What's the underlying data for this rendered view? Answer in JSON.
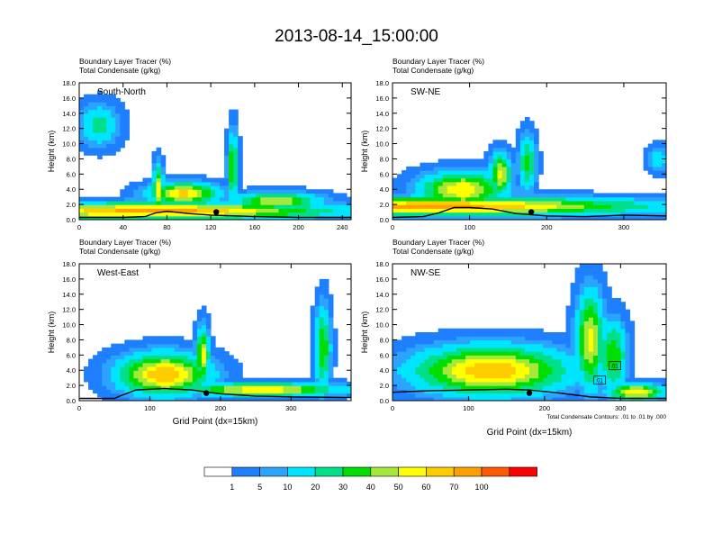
{
  "title": "2013-08-14_15:00:00",
  "chart_data": [
    {
      "type": "heatmap",
      "panel_label": "South-North",
      "subtitle_line1": "Boundary Layer Tracer   (%)",
      "subtitle_line2": "Total Condensate   (g/kg)",
      "ylabel": "Height (km)",
      "xlabel": "",
      "xlim": [
        0,
        248
      ],
      "ylim": [
        0,
        18
      ],
      "xticks": [
        0,
        40,
        80,
        120,
        160,
        200,
        240
      ],
      "yticks": [
        0,
        2,
        4,
        6,
        8,
        10,
        12,
        14,
        16,
        18
      ],
      "ytick_labels": [
        "0.0",
        "2.0",
        "4.0",
        "6.0",
        "8.0",
        "10.0",
        "12.0",
        "14.0",
        "16.0",
        "18.0"
      ],
      "terrain": [
        [
          0,
          0.3
        ],
        [
          40,
          0.3
        ],
        [
          60,
          0.4
        ],
        [
          70,
          0.9
        ],
        [
          80,
          1.1
        ],
        [
          100,
          0.8
        ],
        [
          120,
          0.6
        ],
        [
          160,
          0.4
        ],
        [
          200,
          0.3
        ],
        [
          248,
          0.3
        ]
      ],
      "marker": [
        125,
        1.0
      ],
      "blobs": [
        {
          "x": 70,
          "y": 1.2,
          "rx": 180,
          "ry": 1.2,
          "v": 75
        },
        {
          "x": 72,
          "y": 4,
          "rx": 5,
          "ry": 3.5,
          "v": 55
        },
        {
          "x": 95,
          "y": 3.5,
          "rx": 35,
          "ry": 1.5,
          "v": 65
        },
        {
          "x": 140,
          "y": 7,
          "rx": 5,
          "ry": 5,
          "v": 45
        },
        {
          "x": 18,
          "y": 12.5,
          "rx": 20,
          "ry": 3,
          "v": 25
        },
        {
          "x": 180,
          "y": 2.5,
          "rx": 45,
          "ry": 1.2,
          "v": 50
        }
      ]
    },
    {
      "type": "heatmap",
      "panel_label": "SW-NE",
      "subtitle_line1": "Boundary Layer Tracer   (%)",
      "subtitle_line2": "Total Condensate   (g/kg)",
      "ylabel": "Height (km)",
      "xlabel": "",
      "xlim": [
        0,
        355
      ],
      "ylim": [
        0,
        18
      ],
      "xticks": [
        0,
        100,
        200,
        300
      ],
      "yticks": [
        0,
        2,
        4,
        6,
        8,
        10,
        12,
        14,
        16,
        18
      ],
      "ytick_labels": [
        "0.0",
        "2.0",
        "4.0",
        "6.0",
        "8.0",
        "10.0",
        "12.0",
        "14.0",
        "16.0",
        "18.0"
      ],
      "terrain": [
        [
          0,
          0.3
        ],
        [
          40,
          0.4
        ],
        [
          60,
          0.9
        ],
        [
          80,
          1.6
        ],
        [
          100,
          1.6
        ],
        [
          130,
          1.4
        ],
        [
          160,
          0.8
        ],
        [
          200,
          0.5
        ],
        [
          250,
          0.4
        ],
        [
          300,
          0.6
        ],
        [
          355,
          0.5
        ]
      ],
      "marker": [
        180,
        1.0
      ],
      "blobs": [
        {
          "x": 60,
          "y": 1.8,
          "rx": 300,
          "ry": 1.3,
          "v": 75
        },
        {
          "x": 90,
          "y": 4,
          "rx": 60,
          "ry": 2.5,
          "v": 60
        },
        {
          "x": 140,
          "y": 6,
          "rx": 15,
          "ry": 3,
          "v": 55
        },
        {
          "x": 175,
          "y": 7.5,
          "rx": 12,
          "ry": 4,
          "v": 35
        },
        {
          "x": 345,
          "y": 8,
          "rx": 15,
          "ry": 2,
          "v": 15
        }
      ]
    },
    {
      "type": "heatmap",
      "panel_label": "West-East",
      "subtitle_line1": "Boundary Layer Tracer   (%)",
      "subtitle_line2": "Total Condensate   (g/kg)",
      "ylabel": "Height (km)",
      "xlabel": "Grid Point (dx=15km)",
      "xlim": [
        0,
        385
      ],
      "ylim": [
        0,
        18
      ],
      "xticks": [
        0,
        100,
        200,
        300
      ],
      "yticks": [
        0,
        2,
        4,
        6,
        8,
        10,
        12,
        14,
        16,
        18
      ],
      "ytick_labels": [
        "0.0",
        "2.0",
        "4.0",
        "6.0",
        "8.0",
        "10.0",
        "12.0",
        "14.0",
        "16.0",
        "18.0"
      ],
      "terrain": [
        [
          0,
          0.3
        ],
        [
          50,
          0.3
        ],
        [
          60,
          0.7
        ],
        [
          80,
          1.4
        ],
        [
          120,
          1.6
        ],
        [
          160,
          1.4
        ],
        [
          200,
          0.9
        ],
        [
          250,
          0.6
        ],
        [
          300,
          0.5
        ],
        [
          385,
          0.4
        ]
      ],
      "marker": [
        180,
        1.0
      ],
      "blobs": [
        {
          "x": 120,
          "y": 3.5,
          "rx": 70,
          "ry": 3,
          "v": 70
        },
        {
          "x": 175,
          "y": 6,
          "rx": 10,
          "ry": 4,
          "v": 55
        },
        {
          "x": 260,
          "y": 1.5,
          "rx": 120,
          "ry": 1,
          "v": 60
        },
        {
          "x": 345,
          "y": 7,
          "rx": 12,
          "ry": 6,
          "v": 40
        }
      ]
    },
    {
      "type": "heatmap",
      "panel_label": "NW-SE",
      "subtitle_line1": "Boundary Layer Tracer   (%)",
      "subtitle_line2": "Total Condensate   (g/kg)",
      "ylabel": "Height (km)",
      "xlabel": "Grid Point (dx=15km)",
      "xlim": [
        0,
        360
      ],
      "ylim": [
        0,
        18
      ],
      "xticks": [
        0,
        100,
        200,
        300
      ],
      "yticks": [
        0,
        2,
        4,
        6,
        8,
        10,
        12,
        14,
        16,
        18
      ],
      "ytick_labels": [
        "0.0",
        "2.0",
        "4.0",
        "6.0",
        "8.0",
        "10.0",
        "12.0",
        "14.0",
        "16.0",
        "18.0"
      ],
      "terrain": [
        [
          0,
          1.1
        ],
        [
          50,
          1.3
        ],
        [
          100,
          1.4
        ],
        [
          150,
          1.5
        ],
        [
          180,
          1.4
        ],
        [
          220,
          1.0
        ],
        [
          260,
          0.5
        ],
        [
          300,
          0.3
        ],
        [
          360,
          0.3
        ]
      ],
      "marker": [
        180,
        1.0
      ],
      "blobs": [
        {
          "x": 130,
          "y": 4,
          "rx": 110,
          "ry": 3.5,
          "v": 70
        },
        {
          "x": 260,
          "y": 8,
          "rx": 20,
          "ry": 7,
          "v": 55
        },
        {
          "x": 290,
          "y": 6,
          "rx": 20,
          "ry": 5,
          "v": 40
        },
        {
          "x": 320,
          "y": 1.2,
          "rx": 40,
          "ry": 1.2,
          "v": 60
        }
      ],
      "contour_labels": [
        ".01",
        ".01"
      ],
      "contour_note": "Total Condensate Contours: .01 to .01 by .000"
    }
  ],
  "colorbar": {
    "colors": [
      "#ffffff",
      "#1e7fff",
      "#2aa4ff",
      "#00e5ff",
      "#00e08a",
      "#00dd00",
      "#a6e83a",
      "#ffff00",
      "#ffcc00",
      "#ffa000",
      "#ff5a00",
      "#ff0000"
    ],
    "labels": [
      "1",
      "5",
      "10",
      "20",
      "30",
      "40",
      "50",
      "60",
      "70",
      "100"
    ]
  }
}
